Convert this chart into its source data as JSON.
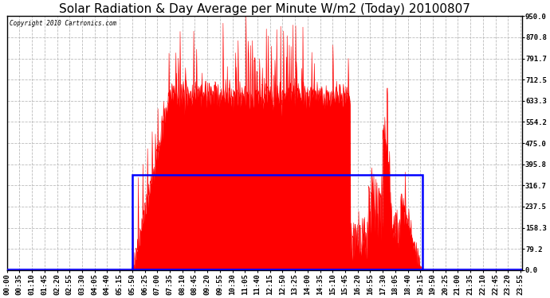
{
  "title": "Solar Radiation & Day Average per Minute W/m2 (Today) 20100807",
  "copyright": "Copyright 2010 Cartronics.com",
  "background_color": "#ffffff",
  "plot_bg_color": "#ffffff",
  "yticks": [
    0.0,
    79.2,
    158.3,
    237.5,
    316.7,
    395.8,
    475.0,
    554.2,
    633.3,
    712.5,
    791.7,
    870.8,
    950.0
  ],
  "ymax": 950.0,
  "ymin": 0.0,
  "fill_color": "#ff0000",
  "line_color": "#ff0000",
  "avg_box_color": "#0000ff",
  "avg_value": 356.0,
  "sunrise_min": 350,
  "sunset_min": 1160,
  "grid_color": "#bbbbbb",
  "grid_style": "--",
  "title_fontsize": 11,
  "tick_label_fontsize": 6.5
}
